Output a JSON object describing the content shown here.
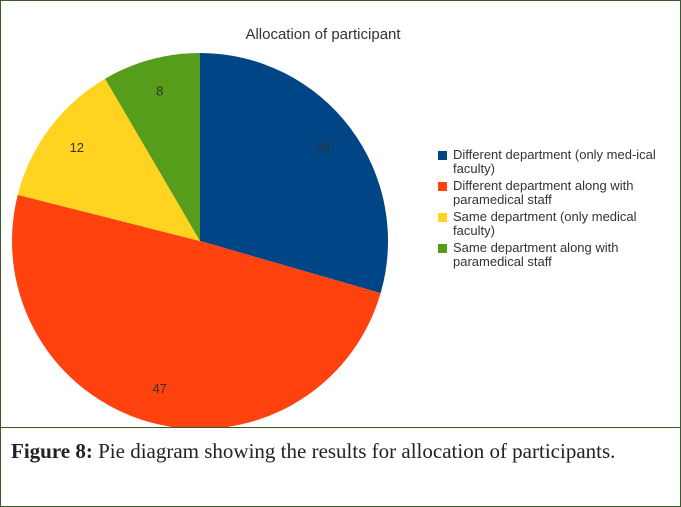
{
  "chart_data": {
    "type": "pie",
    "title": "Allocation of participant",
    "categories": [
      "Different department (only med-ical faculty)",
      "Different department along with paramedical staff",
      "Same department (only medical faculty)",
      "Same department along with paramedical staff"
    ],
    "values": [
      28,
      47,
      12,
      8
    ],
    "colors": [
      "#004586",
      "#ff420e",
      "#ffd320",
      "#579d1c"
    ],
    "legend": "right"
  },
  "caption": {
    "label": "Figure 8:",
    "text": "Pie diagram showing the results for allocation of participants."
  }
}
